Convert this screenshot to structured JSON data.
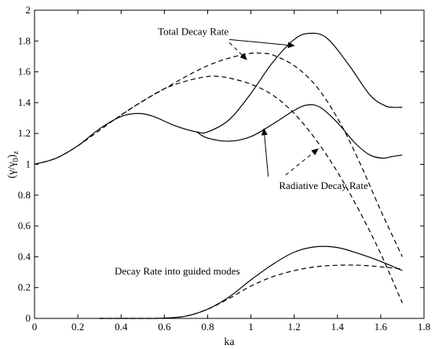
{
  "chart_data": {
    "type": "line",
    "xlabel": "ka",
    "ylabel": "(γ/γ",
    "ylabel_sub0": "0",
    "ylabel_sub1": ")",
    "ylabel_sub2": "z",
    "xlim": [
      0,
      1.8
    ],
    "ylim": [
      0,
      2
    ],
    "xticks": [
      "0",
      "0.2",
      "0.4",
      "0.6",
      "0.8",
      "1",
      "1.2",
      "1.4",
      "1.6",
      "1.8"
    ],
    "yticks": [
      "0",
      "0.2",
      "0.4",
      "0.6",
      "0.8",
      "1",
      "1.2",
      "1.4",
      "1.6",
      "1.8",
      "2"
    ],
    "grid": false,
    "series": [
      {
        "style": "solid",
        "x": [
          0,
          0.1,
          0.2,
          0.3,
          0.4,
          0.48,
          0.55,
          0.65,
          0.75,
          0.8,
          0.9,
          1.0,
          1.1,
          1.2,
          1.27,
          1.35,
          1.45,
          1.55,
          1.62,
          1.66,
          1.7
        ],
        "y": [
          1.0,
          1.04,
          1.12,
          1.23,
          1.31,
          1.33,
          1.31,
          1.25,
          1.21,
          1.21,
          1.29,
          1.46,
          1.66,
          1.81,
          1.85,
          1.82,
          1.65,
          1.45,
          1.38,
          1.37,
          1.37
        ]
      },
      {
        "style": "solid",
        "x": [
          0.75,
          0.8,
          0.9,
          1.0,
          1.1,
          1.2,
          1.26,
          1.32,
          1.4,
          1.48,
          1.55,
          1.61,
          1.65,
          1.7
        ],
        "y": [
          1.21,
          1.17,
          1.15,
          1.18,
          1.26,
          1.35,
          1.385,
          1.37,
          1.27,
          1.14,
          1.06,
          1.04,
          1.05,
          1.06
        ]
      },
      {
        "style": "dashed",
        "x": [
          0,
          0.1,
          0.2,
          0.3,
          0.4,
          0.5,
          0.6,
          0.7,
          0.8,
          0.9,
          1.0,
          1.05,
          1.1,
          1.2,
          1.3,
          1.4,
          1.5,
          1.6,
          1.7
        ],
        "y": [
          1.0,
          1.04,
          1.12,
          1.22,
          1.32,
          1.41,
          1.49,
          1.57,
          1.64,
          1.69,
          1.72,
          1.72,
          1.71,
          1.64,
          1.51,
          1.3,
          1.02,
          0.7,
          0.4
        ]
      },
      {
        "style": "dashed",
        "x": [
          0.4,
          0.5,
          0.6,
          0.7,
          0.8,
          0.85,
          0.9,
          1.0,
          1.1,
          1.2,
          1.3,
          1.4,
          1.5,
          1.6,
          1.7
        ],
        "y": [
          1.32,
          1.41,
          1.49,
          1.54,
          1.57,
          1.57,
          1.56,
          1.52,
          1.45,
          1.33,
          1.16,
          0.95,
          0.7,
          0.42,
          0.1
        ]
      },
      {
        "style": "solid",
        "x": [
          0.3,
          0.5,
          0.6,
          0.7,
          0.8,
          0.9,
          1.0,
          1.1,
          1.2,
          1.3,
          1.4,
          1.5,
          1.6,
          1.7
        ],
        "y": [
          0.0,
          0.0,
          0.002,
          0.015,
          0.06,
          0.14,
          0.25,
          0.35,
          0.43,
          0.465,
          0.46,
          0.42,
          0.37,
          0.31
        ]
      },
      {
        "style": "dashed",
        "x": [
          0.3,
          0.5,
          0.6,
          0.7,
          0.8,
          0.9,
          1.0,
          1.1,
          1.2,
          1.3,
          1.4,
          1.5,
          1.6,
          1.7
        ],
        "y": [
          0.0,
          0.0,
          0.002,
          0.015,
          0.06,
          0.13,
          0.21,
          0.27,
          0.31,
          0.335,
          0.345,
          0.345,
          0.335,
          0.32
        ]
      }
    ],
    "annotations": [
      {
        "text": "Total Decay Rate",
        "tx": 0.57,
        "ty": 1.84,
        "arrows": [
          {
            "style": "solid",
            "from": [
              0.9,
              1.81
            ],
            "to": [
              1.2,
              1.77
            ]
          },
          {
            "style": "dashed",
            "from": [
              0.9,
              1.79
            ],
            "to": [
              0.98,
              1.68
            ]
          }
        ]
      },
      {
        "text": "Radiative Decay Rate",
        "tx": 1.13,
        "ty": 0.84,
        "arrows": [
          {
            "style": "solid",
            "from": [
              1.08,
              0.92
            ],
            "to": [
              1.06,
              1.23
            ]
          },
          {
            "style": "dashed",
            "from": [
              1.16,
              0.93
            ],
            "to": [
              1.31,
              1.1
            ]
          }
        ]
      },
      {
        "text": "Decay Rate into guided modes",
        "tx": 0.37,
        "ty": 0.285,
        "arrows": []
      }
    ]
  }
}
